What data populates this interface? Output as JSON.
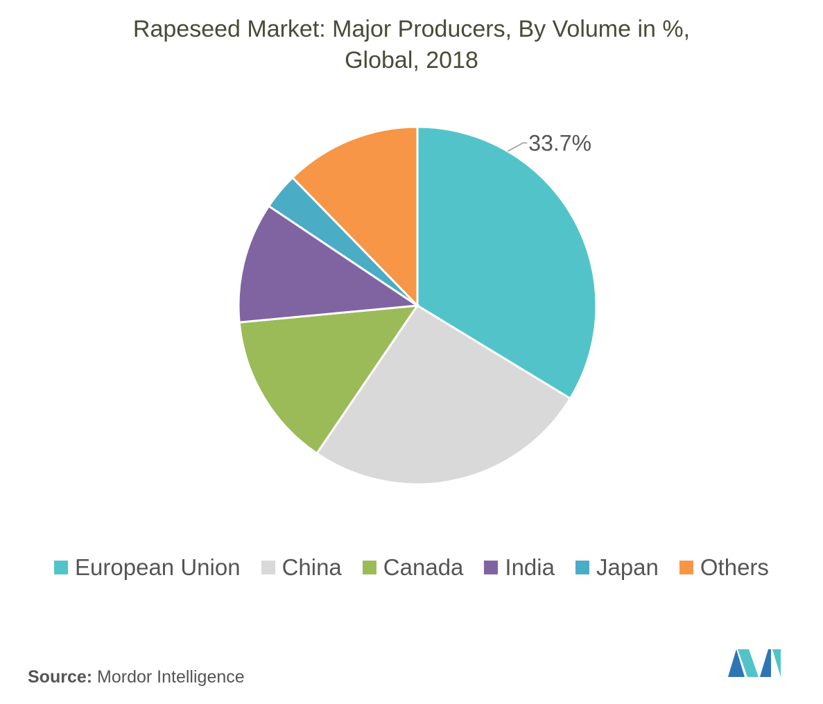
{
  "chart_data": {
    "type": "pie",
    "title_lines": [
      "Rapeseed Market: Major Producers, By Volume in %,",
      "Global, 2018"
    ],
    "series": [
      {
        "name": "European Union",
        "value": 33.7,
        "color": "#52C4C9",
        "label": "33.7%"
      },
      {
        "name": "China",
        "value": 25.8,
        "color": "#D9D9D9",
        "label": ""
      },
      {
        "name": "Canada",
        "value": 14.0,
        "color": "#9BBB59",
        "label": ""
      },
      {
        "name": "India",
        "value": 10.9,
        "color": "#8064A2",
        "label": ""
      },
      {
        "name": "Japan",
        "value": 3.3,
        "color": "#4BACC6",
        "label": ""
      },
      {
        "name": "Others",
        "value": 12.3,
        "color": "#F79646",
        "label": ""
      }
    ],
    "legend_position": "bottom"
  },
  "source": {
    "label": "Source:",
    "text": "Mordor Intelligence"
  },
  "logo": {
    "icon": "mordor-intelligence-logo-icon",
    "colors": [
      "#2E75B6",
      "#52C4C9"
    ]
  }
}
